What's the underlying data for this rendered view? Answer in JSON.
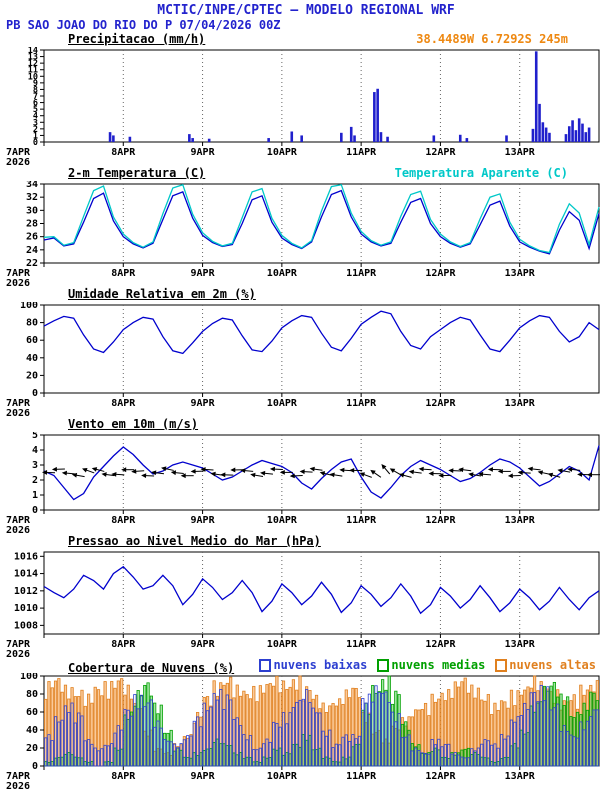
{
  "header": {
    "title": "MCTIC/INPE/CPTEC — MODELO REGIONAL WRF",
    "station": "PB SAO JOAO DO RIO DO P 07/04/2026 00Z"
  },
  "colors": {
    "header_blue": "#2323cd",
    "coords_orange": "#ee8811",
    "line_blue": "#0000cd",
    "apparent_cyan": "#00c8c8",
    "precip_bar_blue": "#2020cc",
    "cloud_low_blue": "#2d3fd0",
    "cloud_mid_green": "#00a000",
    "cloud_high_orange": "#e0801f"
  },
  "x_axis": {
    "hours_total": 168,
    "step_hours": 3,
    "day_ticks": [
      {
        "h": 0,
        "label": "7APR",
        "sub": "2026"
      },
      {
        "h": 24,
        "label": "8APR"
      },
      {
        "h": 48,
        "label": "9APR"
      },
      {
        "h": 72,
        "label": "10APR"
      },
      {
        "h": 96,
        "label": "11APR"
      },
      {
        "h": 120,
        "label": "12APR"
      },
      {
        "h": 144,
        "label": "13APR"
      }
    ]
  },
  "chart_data": [
    {
      "id": "precip",
      "type": "bar",
      "title": "Precipitacao (mm/h)",
      "title_right": "38.4489W 6.7292S 245m",
      "title_right_color": "#ee8811",
      "color": "#2020cc",
      "ylim": [
        0,
        14
      ],
      "yticks": [
        0,
        1,
        2,
        3,
        4,
        5,
        6,
        7,
        8,
        9,
        10,
        11,
        12,
        13,
        14
      ],
      "bars": [
        [
          20,
          1.5
        ],
        [
          21,
          1.0
        ],
        [
          26,
          0.8
        ],
        [
          44,
          1.2
        ],
        [
          45,
          0.6
        ],
        [
          50,
          0.5
        ],
        [
          68,
          0.6
        ],
        [
          75,
          1.6
        ],
        [
          78,
          1.0
        ],
        [
          90,
          1.4
        ],
        [
          93,
          2.3
        ],
        [
          94,
          1.0
        ],
        [
          100,
          7.6
        ],
        [
          101,
          8.1
        ],
        [
          102,
          1.5
        ],
        [
          104,
          0.8
        ],
        [
          118,
          1.0
        ],
        [
          126,
          1.1
        ],
        [
          128,
          0.6
        ],
        [
          140,
          1.0
        ],
        [
          148,
          2.0
        ],
        [
          149,
          13.8
        ],
        [
          150,
          5.8
        ],
        [
          151,
          3.0
        ],
        [
          152,
          2.2
        ],
        [
          153,
          1.4
        ],
        [
          158,
          1.2
        ],
        [
          159,
          2.4
        ],
        [
          160,
          3.3
        ],
        [
          161,
          1.8
        ],
        [
          162,
          3.6
        ],
        [
          163,
          2.8
        ],
        [
          164,
          1.5
        ],
        [
          165,
          2.2
        ]
      ]
    },
    {
      "id": "temp",
      "type": "line",
      "title": "2-m Temperatura (C)",
      "legend_right": {
        "label": "Temperatura Aparente (C)",
        "color": "#00c8c8"
      },
      "ylim": [
        22,
        34
      ],
      "yticks": [
        22,
        24,
        26,
        28,
        30,
        32,
        34
      ],
      "series": [
        {
          "name": "2-m Temperatura (C)",
          "color": "#0000cd",
          "values": [
            25.5,
            25.8,
            24.6,
            24.9,
            28.2,
            31.8,
            32.6,
            28.4,
            26.0,
            24.9,
            24.3,
            25.0,
            28.6,
            32.2,
            32.8,
            28.8,
            26.2,
            25.1,
            24.5,
            24.8,
            28.0,
            31.6,
            32.2,
            28.2,
            25.8,
            24.8,
            24.2,
            25.2,
            29.0,
            32.4,
            33.0,
            29.0,
            26.4,
            25.2,
            24.6,
            25.0,
            28.2,
            31.2,
            31.8,
            28.0,
            26.0,
            25.0,
            24.4,
            24.9,
            27.8,
            30.8,
            31.4,
            27.6,
            25.2,
            24.4,
            23.8,
            23.4,
            27.0,
            29.8,
            28.5,
            24.2,
            29.5
          ]
        },
        {
          "name": "Temperatura Aparente (C)",
          "color": "#00c8c8",
          "values": [
            25.9,
            26.0,
            24.7,
            25.1,
            29.1,
            33.0,
            33.7,
            29.0,
            26.4,
            25.1,
            24.4,
            25.2,
            29.5,
            33.4,
            33.9,
            29.4,
            26.6,
            25.3,
            24.6,
            25.0,
            28.9,
            32.8,
            33.3,
            28.8,
            26.2,
            25.0,
            24.3,
            25.4,
            29.9,
            33.6,
            33.9,
            29.6,
            26.8,
            25.4,
            24.7,
            25.2,
            29.1,
            32.4,
            32.9,
            28.6,
            26.4,
            25.2,
            24.5,
            25.1,
            28.7,
            32.0,
            32.5,
            28.2,
            25.6,
            24.6,
            23.9,
            23.6,
            27.9,
            31.0,
            29.6,
            24.8,
            30.5
          ]
        }
      ]
    },
    {
      "id": "rh",
      "type": "line",
      "title": "Umidade Relativa em 2m (%)",
      "ylim": [
        0,
        100
      ],
      "yticks": [
        0,
        20,
        40,
        60,
        80,
        100
      ],
      "series": [
        {
          "name": "Umidade Relativa em 2m (%)",
          "color": "#0000cd",
          "values": [
            76,
            82,
            87,
            85,
            66,
            50,
            46,
            58,
            72,
            80,
            86,
            84,
            64,
            48,
            45,
            57,
            70,
            79,
            85,
            83,
            65,
            49,
            47,
            59,
            74,
            82,
            88,
            86,
            68,
            52,
            48,
            62,
            78,
            86,
            93,
            90,
            70,
            54,
            50,
            64,
            72,
            80,
            86,
            83,
            66,
            50,
            47,
            60,
            74,
            82,
            88,
            86,
            70,
            58,
            64,
            80,
            72
          ]
        }
      ]
    },
    {
      "id": "wind",
      "type": "line",
      "title": "Vento em 10m (m/s)",
      "ylim": [
        0,
        5
      ],
      "yticks": [
        0,
        1,
        2,
        3,
        4,
        5
      ],
      "series": [
        {
          "name": "Vento em 10m (m/s)",
          "color": "#0000cd",
          "values": [
            2.6,
            2.3,
            1.5,
            0.7,
            1.1,
            2.2,
            2.9,
            3.6,
            4.2,
            3.7,
            3.0,
            2.4,
            2.6,
            3.0,
            3.2,
            3.0,
            2.8,
            2.4,
            2.0,
            2.2,
            2.6,
            3.0,
            3.3,
            3.1,
            2.9,
            2.5,
            1.8,
            1.4,
            2.1,
            2.7,
            3.2,
            3.4,
            2.2,
            1.2,
            0.8,
            1.5,
            2.3,
            2.9,
            3.3,
            3.0,
            2.7,
            2.3,
            1.9,
            2.1,
            2.5,
            3.0,
            3.4,
            3.2,
            2.8,
            2.2,
            1.6,
            1.9,
            2.4,
            2.9,
            2.6,
            2.0,
            4.3
          ]
        }
      ],
      "arrows": {
        "y": 2.5,
        "directions_deg": [
          182,
          178,
          185,
          190,
          200,
          195,
          188,
          184,
          180,
          176,
          183,
          187,
          192,
          186,
          180,
          178,
          184,
          188,
          182,
          179,
          185,
          190,
          186,
          183,
          180,
          177,
          183,
          188,
          194,
          189,
          184,
          181,
          200,
          215,
          230,
          210,
          195,
          188,
          184,
          181,
          179,
          183,
          187,
          190,
          185,
          182,
          180,
          178,
          183,
          187,
          192,
          196,
          190,
          186,
          182,
          180
        ]
      }
    },
    {
      "id": "slp",
      "type": "line",
      "title": "Pressao ao Nivel Medio do Mar (hPa)",
      "ylim": [
        1007,
        1016.5
      ],
      "yticks": [
        1008,
        1010,
        1012,
        1014,
        1016
      ],
      "series": [
        {
          "name": "Pressao ao Nivel Medio do Mar (hPa)",
          "color": "#0000cd",
          "values": [
            1012.5,
            1011.8,
            1011.2,
            1012.2,
            1013.8,
            1013.2,
            1012.2,
            1014.0,
            1014.8,
            1013.6,
            1012.2,
            1012.6,
            1013.8,
            1012.6,
            1010.4,
            1011.6,
            1013.4,
            1012.4,
            1011.0,
            1011.8,
            1013.2,
            1011.8,
            1009.6,
            1010.8,
            1012.8,
            1011.8,
            1010.4,
            1011.4,
            1013.0,
            1011.6,
            1009.5,
            1010.6,
            1012.6,
            1011.6,
            1010.2,
            1011.2,
            1012.8,
            1011.4,
            1009.4,
            1010.4,
            1012.4,
            1011.4,
            1010.0,
            1011.0,
            1012.6,
            1011.2,
            1009.6,
            1010.6,
            1012.2,
            1011.2,
            1009.8,
            1010.8,
            1012.4,
            1011.0,
            1009.8,
            1011.2,
            1012.0
          ]
        }
      ]
    },
    {
      "id": "clouds",
      "type": "multibar",
      "title": "Cobertura de Nuvens (%)",
      "legend": [
        {
          "label": "nuvens baixas",
          "color": "#2d3fd0"
        },
        {
          "label": "nuvens medias",
          "color": "#00a000"
        },
        {
          "label": "nuvens altas",
          "color": "#e0801f"
        }
      ],
      "ylim": [
        0,
        100
      ],
      "yticks": [
        0,
        20,
        40,
        60,
        80,
        100
      ],
      "series": [
        {
          "name": "nuvens altas",
          "color": "#e0801f",
          "fill": "rgba(246,166,86,0.6)",
          "values": [
            95,
            100,
            90,
            85,
            80,
            90,
            95,
            100,
            90,
            70,
            40,
            20,
            15,
            25,
            35,
            60,
            80,
            95,
            100,
            90,
            85,
            90,
            95,
            100,
            95,
            100,
            90,
            80,
            70,
            75,
            85,
            90,
            60,
            40,
            30,
            45,
            55,
            65,
            70,
            80,
            85,
            95,
            100,
            90,
            80,
            70,
            75,
            85,
            90,
            100,
            95,
            85,
            75,
            80,
            90,
            95
          ]
        },
        {
          "name": "nuvens medias",
          "color": "#00a000",
          "fill": "rgba(60,200,60,0.45)",
          "values": [
            5,
            10,
            15,
            10,
            5,
            0,
            5,
            20,
            60,
            85,
            95,
            70,
            40,
            20,
            10,
            15,
            20,
            30,
            25,
            15,
            10,
            5,
            10,
            20,
            15,
            25,
            35,
            20,
            10,
            5,
            10,
            25,
            70,
            90,
            100,
            85,
            50,
            25,
            15,
            20,
            10,
            15,
            20,
            15,
            10,
            5,
            10,
            25,
            40,
            70,
            90,
            95,
            80,
            60,
            70,
            85
          ]
        },
        {
          "name": "nuvens baixas",
          "color": "#2d3fd0",
          "fill": "none",
          "values": [
            35,
            55,
            70,
            60,
            30,
            20,
            25,
            45,
            65,
            80,
            75,
            50,
            30,
            25,
            35,
            55,
            70,
            85,
            80,
            55,
            35,
            20,
            30,
            50,
            60,
            75,
            85,
            65,
            40,
            25,
            35,
            35,
            80,
            90,
            85,
            60,
            35,
            20,
            15,
            30,
            25,
            15,
            10,
            20,
            30,
            25,
            35,
            55,
            70,
            85,
            90,
            70,
            45,
            35,
            50,
            65
          ]
        }
      ]
    }
  ]
}
